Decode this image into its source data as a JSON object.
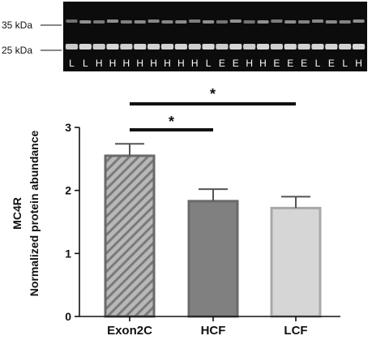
{
  "blot": {
    "markers": [
      "35 kDa",
      "25 kDa"
    ],
    "lanes": [
      "L",
      "L",
      "H",
      "H",
      "H",
      "H",
      "H",
      "H",
      "H",
      "H",
      "L",
      "E",
      "E",
      "H",
      "H",
      "E",
      "E",
      "E",
      "L",
      "E",
      "L",
      "H"
    ]
  },
  "chart_data": {
    "type": "bar",
    "categories": [
      "Exon2C",
      "HCF",
      "LCF"
    ],
    "values": [
      2.55,
      1.83,
      1.72
    ],
    "errors": [
      0.19,
      0.19,
      0.18
    ],
    "ylabel": "MC4R",
    "ylabel2": "Normalized protein abundance",
    "ylim": [
      0,
      3
    ],
    "yticks": [
      "0",
      "1",
      "2",
      "3"
    ],
    "grid": false,
    "bar_colors": [
      "#9c9c9c",
      "#808080",
      "#d6d6d6"
    ],
    "bar_patterns": [
      "diagonal-hatch",
      "solid",
      "solid"
    ],
    "significance": [
      {
        "from": "Exon2C",
        "to": "HCF",
        "label": "*"
      },
      {
        "from": "Exon2C",
        "to": "LCF",
        "label": "*"
      }
    ]
  }
}
